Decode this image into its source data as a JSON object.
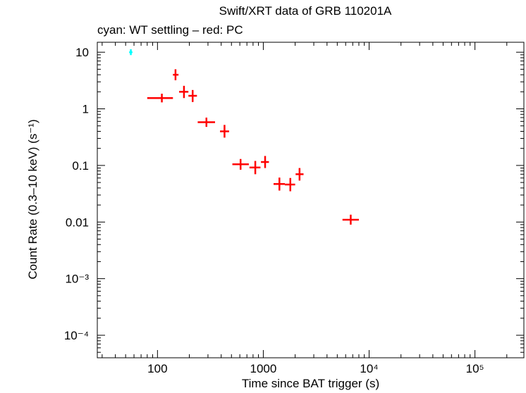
{
  "chart_data": {
    "type": "scatter",
    "title": "Swift/XRT data of GRB 110201A",
    "subtitle": "cyan: WT settling – red: PC",
    "xlabel": "Time since BAT trigger (s)",
    "ylabel": "Count Rate (0.3–10 keV) (s⁻¹)",
    "xscale": "log",
    "yscale": "log",
    "xlim": [
      27,
      290000
    ],
    "ylim": [
      4e-05,
      15
    ],
    "x_ticks": [
      {
        "value": 100,
        "label": "100"
      },
      {
        "value": 1000,
        "label": "1000"
      },
      {
        "value": 10000,
        "label": "10⁴"
      },
      {
        "value": 100000,
        "label": "10⁵"
      }
    ],
    "y_ticks": [
      {
        "value": 10,
        "label": "10"
      },
      {
        "value": 1,
        "label": "1"
      },
      {
        "value": 0.1,
        "label": "0.1"
      },
      {
        "value": 0.01,
        "label": "0.01"
      },
      {
        "value": 0.001,
        "label": "10⁻³"
      },
      {
        "value": 0.0001,
        "label": "10⁻⁴"
      }
    ],
    "grid": false,
    "series": [
      {
        "color": "#00ffff",
        "points": [
          {
            "x": 56,
            "x_lo": 54,
            "x_hi": 58,
            "y": 10,
            "y_lo": 8.9,
            "y_hi": 11.3
          }
        ]
      },
      {
        "color": "#ff0000",
        "points": [
          {
            "x": 110,
            "x_lo": 80,
            "x_hi": 140,
            "y": 1.55,
            "y_lo": 1.3,
            "y_hi": 1.85
          },
          {
            "x": 148,
            "x_lo": 140,
            "x_hi": 158,
            "y": 4.0,
            "y_lo": 3.2,
            "y_hi": 5.0
          },
          {
            "x": 178,
            "x_lo": 160,
            "x_hi": 196,
            "y": 2.0,
            "y_lo": 1.55,
            "y_hi": 2.55
          },
          {
            "x": 215,
            "x_lo": 196,
            "x_hi": 236,
            "y": 1.7,
            "y_lo": 1.32,
            "y_hi": 2.15
          },
          {
            "x": 290,
            "x_lo": 240,
            "x_hi": 350,
            "y": 0.58,
            "y_lo": 0.48,
            "y_hi": 0.7
          },
          {
            "x": 430,
            "x_lo": 390,
            "x_hi": 475,
            "y": 0.4,
            "y_lo": 0.31,
            "y_hi": 0.52
          },
          {
            "x": 610,
            "x_lo": 510,
            "x_hi": 730,
            "y": 0.105,
            "y_lo": 0.084,
            "y_hi": 0.13
          },
          {
            "x": 840,
            "x_lo": 740,
            "x_hi": 940,
            "y": 0.092,
            "y_lo": 0.07,
            "y_hi": 0.12
          },
          {
            "x": 1040,
            "x_lo": 950,
            "x_hi": 1130,
            "y": 0.115,
            "y_lo": 0.09,
            "y_hi": 0.147
          },
          {
            "x": 1420,
            "x_lo": 1250,
            "x_hi": 1600,
            "y": 0.047,
            "y_lo": 0.036,
            "y_hi": 0.061
          },
          {
            "x": 1800,
            "x_lo": 1600,
            "x_hi": 2000,
            "y": 0.046,
            "y_lo": 0.035,
            "y_hi": 0.06
          },
          {
            "x": 2200,
            "x_lo": 2020,
            "x_hi": 2400,
            "y": 0.07,
            "y_lo": 0.054,
            "y_hi": 0.09
          },
          {
            "x": 6700,
            "x_lo": 5600,
            "x_hi": 8000,
            "y": 0.011,
            "y_lo": 0.009,
            "y_hi": 0.0135
          }
        ]
      }
    ]
  }
}
